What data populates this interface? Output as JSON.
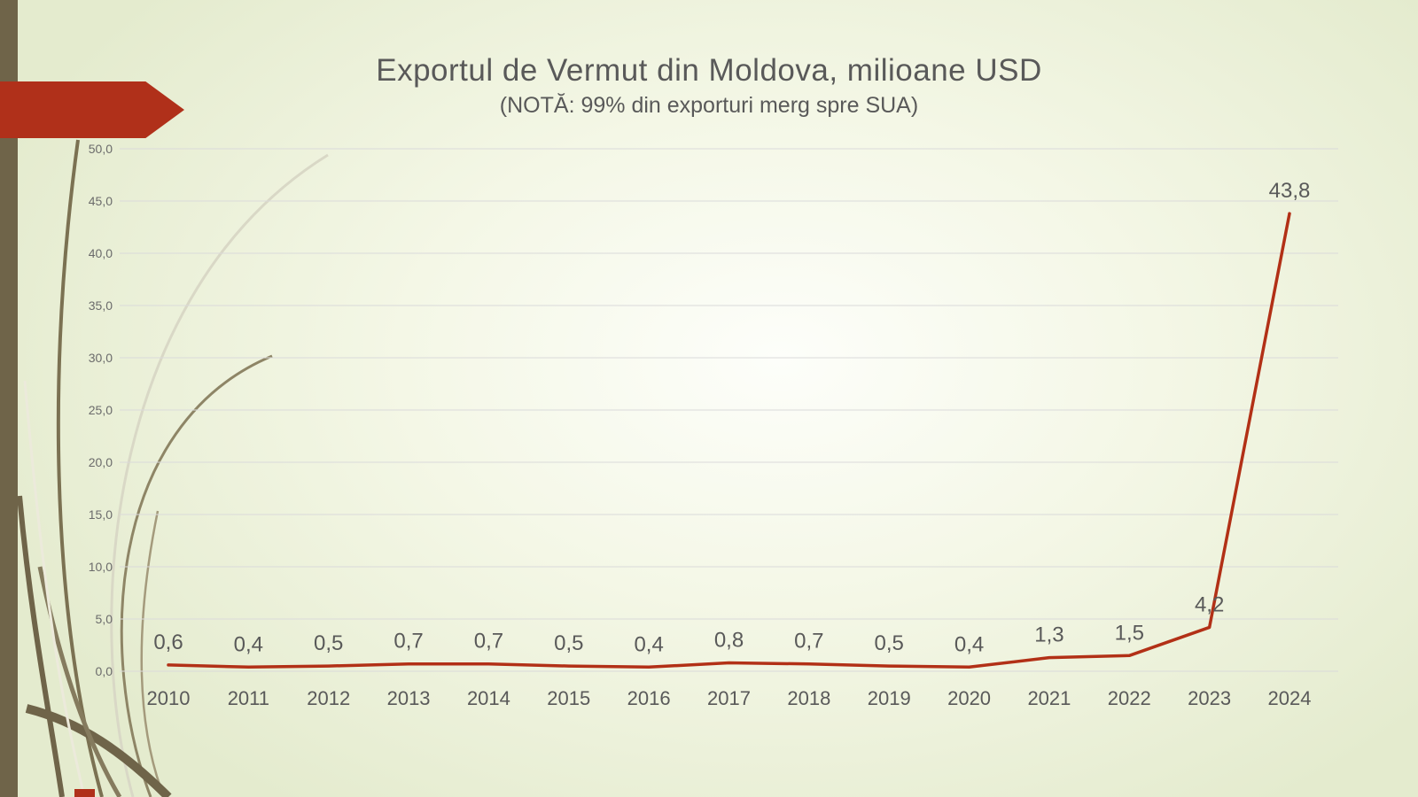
{
  "slide": {
    "title": "Exportul de Vermut din Moldova, milioane USD",
    "subtitle": "(NOTĂ: 99% din exporturi merg spre SUA)"
  },
  "chart_data": {
    "type": "line",
    "title": "Exportul de Vermut din Moldova, milioane USD",
    "subtitle": "(NOTĂ: 99% din exporturi merg spre SUA)",
    "categories": [
      "2010",
      "2011",
      "2012",
      "2013",
      "2014",
      "2015",
      "2016",
      "2017",
      "2018",
      "2019",
      "2020",
      "2021",
      "2022",
      "2023",
      "2024"
    ],
    "values": [
      0.6,
      0.4,
      0.5,
      0.7,
      0.7,
      0.5,
      0.4,
      0.8,
      0.7,
      0.5,
      0.4,
      1.3,
      1.5,
      4.2,
      43.8
    ],
    "value_labels": [
      "0,6",
      "0,4",
      "0,5",
      "0,7",
      "0,7",
      "0,5",
      "0,4",
      "0,8",
      "0,7",
      "0,5",
      "0,4",
      "1,3",
      "1,5",
      "4,2",
      "43,8"
    ],
    "xlabel": "",
    "ylabel": "",
    "ylim": [
      0,
      50
    ],
    "ytick_step": 5,
    "ytick_labels": [
      "0,0",
      "5,0",
      "10,0",
      "15,0",
      "20,0",
      "25,0",
      "30,0",
      "35,0",
      "40,0",
      "45,0",
      "50,0"
    ],
    "grid": true,
    "legend": "none",
    "line_color": "#b23016"
  },
  "colors": {
    "accent_red": "#b0301a",
    "left_bar_olive": "#6f6449",
    "text_gray": "#595959",
    "gridline_gray": "#dadada"
  }
}
